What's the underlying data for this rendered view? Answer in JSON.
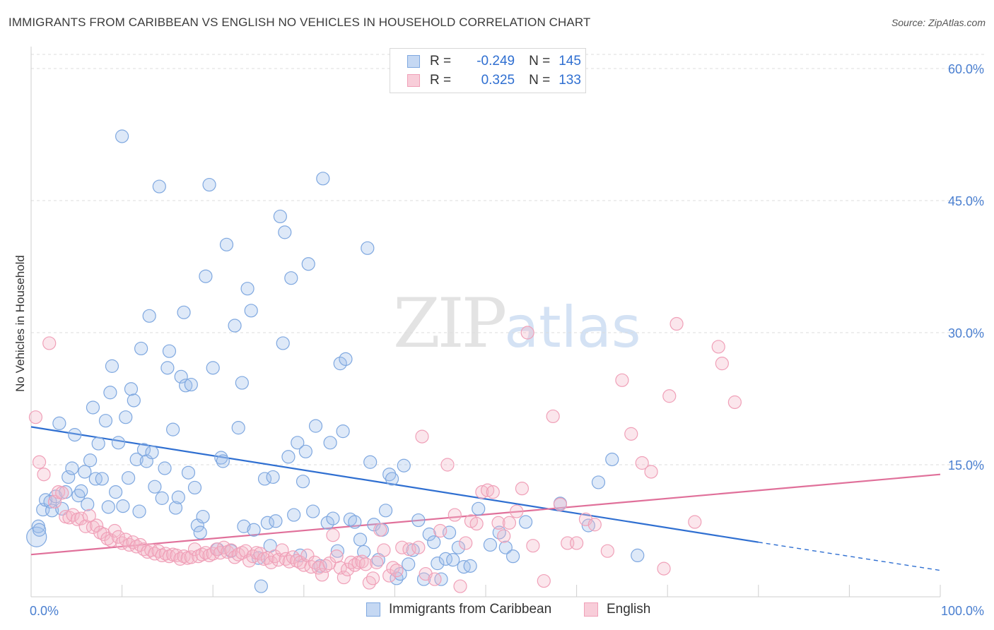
{
  "title": "IMMIGRANTS FROM CARIBBEAN VS ENGLISH NO VEHICLES IN HOUSEHOLD CORRELATION CHART",
  "source": "Source: ZipAtlas.com",
  "watermark": {
    "zip": "ZIP",
    "atlas": "atlas"
  },
  "legend": {
    "rows": [
      {
        "r_label": "R =",
        "r_value": "-0.249",
        "n_label": "N =",
        "n_value": "145"
      },
      {
        "r_label": "R =",
        "r_value": "0.325",
        "n_label": "N =",
        "n_value": "133"
      }
    ]
  },
  "chart_data": {
    "type": "scatter",
    "title": "IMMIGRANTS FROM CARIBBEAN VS ENGLISH NO VEHICLES IN HOUSEHOLD CORRELATION CHART",
    "xlabel": "",
    "ylabel": "No Vehicles in Household",
    "xlim": [
      0,
      100
    ],
    "ylim": [
      0,
      63
    ],
    "x_tick_labels": [
      "0.0%",
      "100.0%"
    ],
    "y_ticks": [
      15,
      30,
      45,
      60
    ],
    "y_tick_labels": [
      "15.0%",
      "30.0%",
      "45.0%",
      "60.0%"
    ],
    "grid": true,
    "legend_position": "top-center",
    "colors": {
      "blue": "#7fa8e0",
      "blue_line": "#2f6fd1",
      "pink": "#f0a0b8",
      "pink_line": "#e0709a"
    },
    "series": [
      {
        "name": "Immigrants from Caribbean",
        "color": "#7fa8e0",
        "trend": {
          "x": [
            0,
            80
          ],
          "y": [
            19.3,
            6.2
          ],
          "dashed_to": [
            100,
            3.0
          ]
        },
        "points": [
          [
            0.6,
            6.8
          ],
          [
            0.8,
            8.0
          ],
          [
            0.9,
            7.6
          ],
          [
            1.3,
            9.9
          ],
          [
            1.6,
            11.0
          ],
          [
            2.1,
            10.8
          ],
          [
            2.3,
            9.8
          ],
          [
            2.7,
            11.4
          ],
          [
            3.1,
            19.7
          ],
          [
            3.4,
            10.0
          ],
          [
            3.8,
            11.9
          ],
          [
            4.1,
            13.6
          ],
          [
            4.5,
            14.6
          ],
          [
            4.8,
            18.4
          ],
          [
            5.2,
            11.5
          ],
          [
            5.5,
            12.0
          ],
          [
            5.9,
            14.2
          ],
          [
            6.2,
            10.5
          ],
          [
            6.5,
            15.5
          ],
          [
            6.8,
            21.5
          ],
          [
            7.1,
            13.4
          ],
          [
            7.4,
            17.4
          ],
          [
            7.8,
            13.4
          ],
          [
            8.2,
            20.0
          ],
          [
            8.5,
            10.2
          ],
          [
            8.7,
            23.2
          ],
          [
            8.9,
            26.2
          ],
          [
            9.3,
            11.9
          ],
          [
            9.6,
            17.5
          ],
          [
            10.0,
            52.3
          ],
          [
            10.1,
            10.3
          ],
          [
            10.4,
            20.4
          ],
          [
            10.7,
            13.5
          ],
          [
            11.0,
            23.6
          ],
          [
            11.3,
            22.3
          ],
          [
            11.6,
            15.6
          ],
          [
            11.9,
            9.7
          ],
          [
            12.1,
            28.2
          ],
          [
            12.4,
            16.7
          ],
          [
            12.7,
            15.4
          ],
          [
            13.0,
            31.9
          ],
          [
            13.3,
            16.4
          ],
          [
            13.6,
            12.5
          ],
          [
            14.1,
            46.6
          ],
          [
            14.4,
            11.2
          ],
          [
            14.7,
            14.6
          ],
          [
            15.0,
            26.0
          ],
          [
            15.2,
            27.9
          ],
          [
            15.6,
            19.0
          ],
          [
            15.9,
            10.1
          ],
          [
            16.2,
            11.3
          ],
          [
            16.5,
            25.0
          ],
          [
            16.8,
            32.3
          ],
          [
            17.0,
            24.0
          ],
          [
            17.3,
            14.1
          ],
          [
            17.6,
            24.1
          ],
          [
            18.0,
            12.4
          ],
          [
            18.3,
            8.1
          ],
          [
            18.6,
            7.3
          ],
          [
            18.9,
            9.1
          ],
          [
            19.2,
            36.4
          ],
          [
            19.6,
            46.8
          ],
          [
            20.0,
            26.0
          ],
          [
            20.5,
            5.4
          ],
          [
            20.9,
            15.8
          ],
          [
            21.1,
            15.4
          ],
          [
            21.5,
            40.0
          ],
          [
            22.0,
            5.2
          ],
          [
            22.4,
            30.8
          ],
          [
            22.8,
            19.2
          ],
          [
            23.2,
            24.3
          ],
          [
            23.4,
            8.0
          ],
          [
            23.8,
            35.0
          ],
          [
            24.2,
            32.5
          ],
          [
            24.5,
            7.6
          ],
          [
            25.0,
            4.4
          ],
          [
            25.3,
            1.2
          ],
          [
            25.7,
            13.4
          ],
          [
            26.0,
            8.4
          ],
          [
            26.3,
            5.8
          ],
          [
            26.6,
            13.6
          ],
          [
            26.9,
            8.6
          ],
          [
            27.4,
            43.2
          ],
          [
            27.7,
            28.8
          ],
          [
            27.9,
            41.4
          ],
          [
            28.3,
            15.9
          ],
          [
            28.6,
            36.2
          ],
          [
            28.9,
            9.3
          ],
          [
            29.3,
            17.5
          ],
          [
            29.6,
            4.7
          ],
          [
            29.9,
            13.1
          ],
          [
            30.2,
            16.5
          ],
          [
            30.5,
            37.8
          ],
          [
            31.0,
            9.7
          ],
          [
            31.3,
            19.4
          ],
          [
            31.8,
            3.5
          ],
          [
            32.1,
            47.5
          ],
          [
            32.6,
            8.4
          ],
          [
            32.9,
            17.5
          ],
          [
            33.2,
            8.9
          ],
          [
            33.7,
            5.2
          ],
          [
            34.0,
            26.5
          ],
          [
            34.3,
            18.8
          ],
          [
            34.6,
            27.0
          ],
          [
            35.1,
            8.8
          ],
          [
            35.6,
            8.5
          ],
          [
            36.2,
            6.5
          ],
          [
            36.6,
            5.1
          ],
          [
            37.0,
            39.6
          ],
          [
            37.3,
            15.3
          ],
          [
            37.7,
            8.2
          ],
          [
            38.2,
            4.2
          ],
          [
            38.6,
            7.6
          ],
          [
            39.0,
            9.8
          ],
          [
            39.4,
            13.9
          ],
          [
            39.7,
            13.4
          ],
          [
            40.2,
            2.1
          ],
          [
            40.6,
            2.6
          ],
          [
            41.0,
            14.9
          ],
          [
            41.5,
            3.7
          ],
          [
            42.0,
            5.3
          ],
          [
            42.6,
            8.7
          ],
          [
            43.2,
            2.0
          ],
          [
            43.8,
            7.1
          ],
          [
            44.3,
            6.2
          ],
          [
            44.7,
            3.8
          ],
          [
            45.1,
            2.0
          ],
          [
            45.6,
            4.3
          ],
          [
            46.0,
            7.3
          ],
          [
            46.4,
            4.2
          ],
          [
            47.0,
            5.6
          ],
          [
            47.6,
            3.4
          ],
          [
            48.3,
            3.5
          ],
          [
            49.2,
            10.0
          ],
          [
            50.5,
            5.9
          ],
          [
            51.5,
            7.3
          ],
          [
            52.2,
            5.6
          ],
          [
            53.0,
            4.6
          ],
          [
            54.4,
            8.5
          ],
          [
            58.2,
            10.6
          ],
          [
            61.3,
            8.1
          ],
          [
            62.4,
            13.0
          ],
          [
            63.9,
            15.6
          ],
          [
            66.7,
            4.7
          ]
        ]
      },
      {
        "name": "English",
        "color": "#f0a0b8",
        "trend": {
          "x": [
            0,
            100
          ],
          "y": [
            4.8,
            13.9
          ]
        },
        "points": [
          [
            0.5,
            20.4
          ],
          [
            0.9,
            15.3
          ],
          [
            1.4,
            13.9
          ],
          [
            2.0,
            28.8
          ],
          [
            2.6,
            10.8
          ],
          [
            3.0,
            11.9
          ],
          [
            3.4,
            11.8
          ],
          [
            3.8,
            9.1
          ],
          [
            4.2,
            9.0
          ],
          [
            4.6,
            9.3
          ],
          [
            5.1,
            8.8
          ],
          [
            5.5,
            8.9
          ],
          [
            6.0,
            8.0
          ],
          [
            6.4,
            9.2
          ],
          [
            6.8,
            7.9
          ],
          [
            7.2,
            8.1
          ],
          [
            7.6,
            7.3
          ],
          [
            8.0,
            7.1
          ],
          [
            8.4,
            6.6
          ],
          [
            8.8,
            6.4
          ],
          [
            9.2,
            7.5
          ],
          [
            9.6,
            6.8
          ],
          [
            10.0,
            6.1
          ],
          [
            10.4,
            6.5
          ],
          [
            10.8,
            5.9
          ],
          [
            11.2,
            6.2
          ],
          [
            11.6,
            5.7
          ],
          [
            12.0,
            5.9
          ],
          [
            12.4,
            5.4
          ],
          [
            12.8,
            5.1
          ],
          [
            13.2,
            5.3
          ],
          [
            13.6,
            4.9
          ],
          [
            14.0,
            5.2
          ],
          [
            14.4,
            4.7
          ],
          [
            14.8,
            4.9
          ],
          [
            15.2,
            4.6
          ],
          [
            15.6,
            4.8
          ],
          [
            16.0,
            4.7
          ],
          [
            16.4,
            4.3
          ],
          [
            16.8,
            4.6
          ],
          [
            17.2,
            4.4
          ],
          [
            17.6,
            4.5
          ],
          [
            18.0,
            5.4
          ],
          [
            18.4,
            4.6
          ],
          [
            18.8,
            4.8
          ],
          [
            19.2,
            5.0
          ],
          [
            19.6,
            4.7
          ],
          [
            20.0,
            4.9
          ],
          [
            20.4,
            5.4
          ],
          [
            20.8,
            5.0
          ],
          [
            21.2,
            5.6
          ],
          [
            21.6,
            5.1
          ],
          [
            22.0,
            5.3
          ],
          [
            22.4,
            4.5
          ],
          [
            22.8,
            4.8
          ],
          [
            23.2,
            5.0
          ],
          [
            23.6,
            5.2
          ],
          [
            24.0,
            4.1
          ],
          [
            24.4,
            4.6
          ],
          [
            24.8,
            5.0
          ],
          [
            25.2,
            4.9
          ],
          [
            25.6,
            4.3
          ],
          [
            26.0,
            4.4
          ],
          [
            26.4,
            3.9
          ],
          [
            26.8,
            4.6
          ],
          [
            27.2,
            4.2
          ],
          [
            27.6,
            5.3
          ],
          [
            28.0,
            4.3
          ],
          [
            28.4,
            4.0
          ],
          [
            28.8,
            4.5
          ],
          [
            29.2,
            4.1
          ],
          [
            29.6,
            3.9
          ],
          [
            30.0,
            3.6
          ],
          [
            30.4,
            4.7
          ],
          [
            30.8,
            3.4
          ],
          [
            31.2,
            3.9
          ],
          [
            31.6,
            3.3
          ],
          [
            32.0,
            2.5
          ],
          [
            32.4,
            3.5
          ],
          [
            32.8,
            3.8
          ],
          [
            33.2,
            7.0
          ],
          [
            33.6,
            4.6
          ],
          [
            34.0,
            3.3
          ],
          [
            34.4,
            2.2
          ],
          [
            34.8,
            3.1
          ],
          [
            35.2,
            3.9
          ],
          [
            35.6,
            3.6
          ],
          [
            36.0,
            3.9
          ],
          [
            36.4,
            4.0
          ],
          [
            36.8,
            3.7
          ],
          [
            37.2,
            1.6
          ],
          [
            37.6,
            2.1
          ],
          [
            38.0,
            3.9
          ],
          [
            38.4,
            7.6
          ],
          [
            38.8,
            5.3
          ],
          [
            39.4,
            2.4
          ],
          [
            39.8,
            3.3
          ],
          [
            40.2,
            3.0
          ],
          [
            40.8,
            5.6
          ],
          [
            41.6,
            5.4
          ],
          [
            42.6,
            5.6
          ],
          [
            43.0,
            18.2
          ],
          [
            43.4,
            2.6
          ],
          [
            44.4,
            2.0
          ],
          [
            45.0,
            7.5
          ],
          [
            45.8,
            15.0
          ],
          [
            46.6,
            9.3
          ],
          [
            47.2,
            1.2
          ],
          [
            47.8,
            6.1
          ],
          [
            48.4,
            8.6
          ],
          [
            49.0,
            8.3
          ],
          [
            49.6,
            11.9
          ],
          [
            50.2,
            12.1
          ],
          [
            50.8,
            11.9
          ],
          [
            51.4,
            8.4
          ],
          [
            52.0,
            6.9
          ],
          [
            52.6,
            8.4
          ],
          [
            53.4,
            9.7
          ],
          [
            54.0,
            12.3
          ],
          [
            54.6,
            30.0
          ],
          [
            55.2,
            5.8
          ],
          [
            56.4,
            1.8
          ],
          [
            57.4,
            20.5
          ],
          [
            58.2,
            10.5
          ],
          [
            59.0,
            6.1
          ],
          [
            60.0,
            6.1
          ],
          [
            61.0,
            8.8
          ],
          [
            62.0,
            8.2
          ],
          [
            63.4,
            5.2
          ],
          [
            65.0,
            24.6
          ],
          [
            66.0,
            18.5
          ],
          [
            67.2,
            15.2
          ],
          [
            68.2,
            14.2
          ],
          [
            69.6,
            3.2
          ],
          [
            70.2,
            22.8
          ],
          [
            71.0,
            31.0
          ],
          [
            73.0,
            8.5
          ],
          [
            75.6,
            28.4
          ],
          [
            76.0,
            26.5
          ],
          [
            77.4,
            22.1
          ]
        ]
      }
    ]
  },
  "bottom_legend": {
    "items": [
      {
        "label": "Immigrants from Caribbean"
      },
      {
        "label": "English"
      }
    ]
  }
}
